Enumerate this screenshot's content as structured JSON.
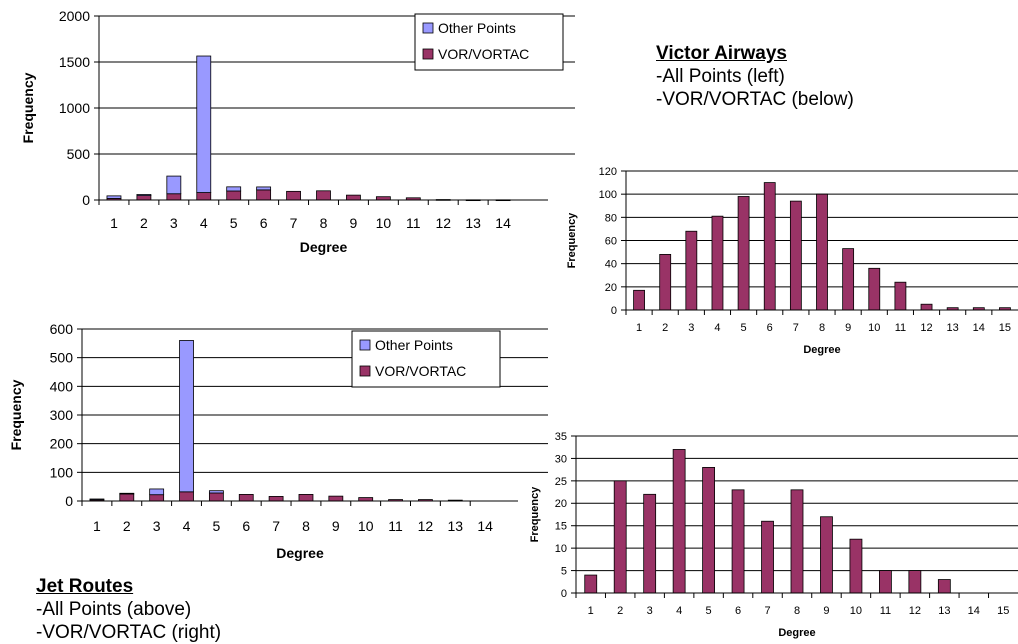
{
  "colors": {
    "other": "#9999FF",
    "vor": "#993366",
    "axis": "#000000"
  },
  "chart_data": [
    {
      "type": "bar",
      "stacked": true,
      "categories": [
        "1",
        "2",
        "3",
        "4",
        "5",
        "6",
        "7",
        "8",
        "9",
        "10",
        "11",
        "12",
        "13",
        "14"
      ],
      "series": [
        {
          "name": "VOR/VORTAC",
          "values": [
            17,
            48,
            68,
            81,
            98,
            110,
            94,
            100,
            53,
            36,
            24,
            5,
            2,
            2
          ]
        },
        {
          "name": "Other Points",
          "values": [
            28,
            12,
            192,
            1484,
            45,
            32,
            0,
            0,
            0,
            0,
            0,
            0,
            0,
            0
          ]
        }
      ],
      "ylim": [
        0,
        2000
      ],
      "yticks": [
        0,
        500,
        1000,
        1500,
        2000
      ],
      "xlabel": "Degree",
      "ylabel": "Frequency",
      "grid": true,
      "legend": "top-right"
    },
    {
      "type": "bar",
      "categories": [
        "1",
        "2",
        "3",
        "4",
        "5",
        "6",
        "7",
        "8",
        "9",
        "10",
        "11",
        "12",
        "13",
        "14",
        "15"
      ],
      "series": [
        {
          "name": "VOR/VORTAC",
          "values": [
            17,
            48,
            68,
            81,
            98,
            110,
            94,
            100,
            53,
            36,
            24,
            5,
            2,
            2,
            2
          ]
        }
      ],
      "ylim": [
        0,
        120
      ],
      "yticks": [
        0,
        20,
        40,
        60,
        80,
        100,
        120
      ],
      "xlabel": "Degree",
      "ylabel": "Frequency",
      "grid": true
    },
    {
      "type": "bar",
      "stacked": true,
      "categories": [
        "1",
        "2",
        "3",
        "4",
        "5",
        "6",
        "7",
        "8",
        "9",
        "10",
        "11",
        "12",
        "13",
        "14"
      ],
      "series": [
        {
          "name": "VOR/VORTAC",
          "values": [
            4,
            25,
            22,
            32,
            28,
            23,
            16,
            23,
            17,
            12,
            5,
            5,
            3,
            0
          ]
        },
        {
          "name": "Other Points",
          "values": [
            3,
            2,
            20,
            528,
            8,
            0,
            0,
            0,
            0,
            0,
            0,
            0,
            0,
            0
          ]
        }
      ],
      "ylim": [
        0,
        600
      ],
      "yticks": [
        0,
        100,
        200,
        300,
        400,
        500,
        600
      ],
      "xlabel": "Degree",
      "ylabel": "Frequency",
      "grid": true,
      "legend": "top-right"
    },
    {
      "type": "bar",
      "categories": [
        "1",
        "2",
        "3",
        "4",
        "5",
        "6",
        "7",
        "8",
        "9",
        "10",
        "11",
        "12",
        "13",
        "14",
        "15"
      ],
      "series": [
        {
          "name": "VOR/VORTAC",
          "values": [
            4,
            25,
            22,
            32,
            28,
            23,
            16,
            23,
            17,
            12,
            5,
            5,
            3,
            0,
            0
          ]
        }
      ],
      "ylim": [
        0,
        35
      ],
      "yticks": [
        0,
        5,
        10,
        15,
        20,
        25,
        30,
        35
      ],
      "xlabel": "Degree",
      "ylabel": "Frequency",
      "grid": true
    }
  ],
  "captions": {
    "victor": {
      "title": "Victor Airways",
      "lines": [
        "-All Points (left)",
        "-VOR/VORTAC (below)"
      ]
    },
    "jet": {
      "title": "Jet Routes",
      "lines": [
        "-All Points (above)",
        "-VOR/VORTAC (right)"
      ]
    }
  }
}
